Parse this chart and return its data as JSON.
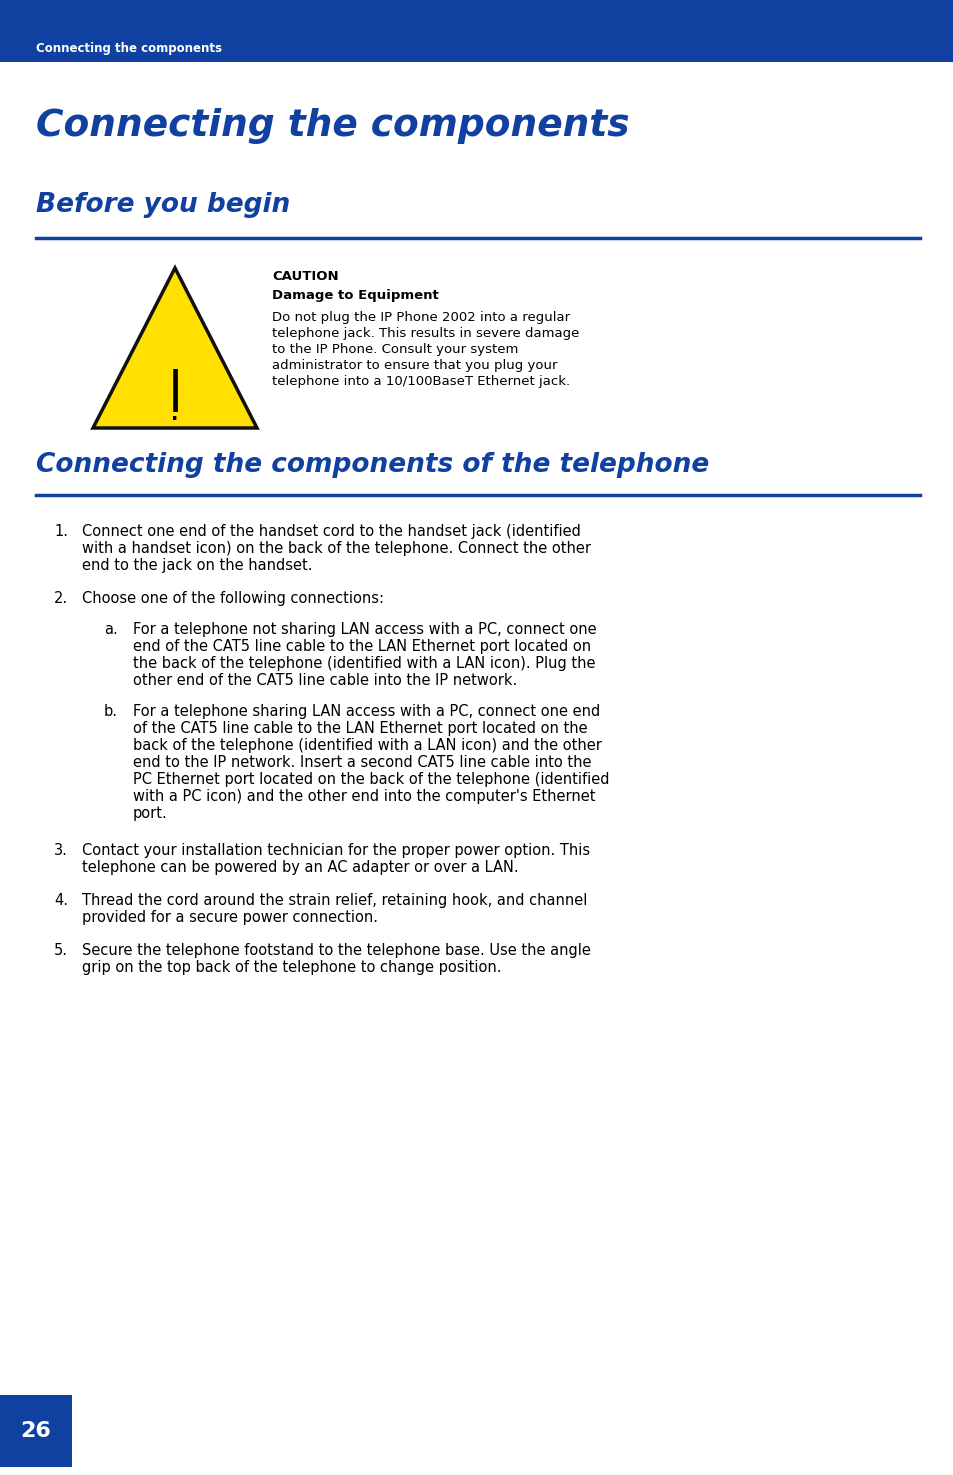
{
  "bg_color": "#ffffff",
  "header_bg": "#1040a0",
  "header_text": "Connecting the components",
  "header_text_color": "#ffffff",
  "page_title": "Connecting the components",
  "page_title_color": "#1040a0",
  "section1_title": "Before you begin",
  "section1_title_color": "#1040a0",
  "section2_title": "Connecting the components of the telephone",
  "section2_title_color": "#1040a0",
  "caution_label": "CAUTION",
  "caution_bold": "Damage to Equipment",
  "caution_line1": "Do not plug the IP Phone 2002 into a regular",
  "caution_line2": "telephone jack. This results in severe damage",
  "caution_line3": "to the IP Phone. Consult your system",
  "caution_line4": "administrator to ensure that you plug your",
  "caution_line5": "telephone into a 10/100BaseT Ethernet jack.",
  "line_color": "#1040a0",
  "page_number": "26",
  "page_num_bg": "#1040a0",
  "page_num_color": "#ffffff",
  "item1_num": "1.",
  "item1_line1": "Connect one end of the handset cord to the handset jack (identified",
  "item1_line2": "with a handset icon) on the back of the telephone. Connect the other",
  "item1_line3": "end to the jack on the handset.",
  "item2_num": "2.",
  "item2_line1": "Choose one of the following connections:",
  "suba_letter": "a.",
  "suba_line1": "For a telephone not sharing LAN access with a PC, connect one",
  "suba_line2": "end of the CAT5 line cable to the LAN Ethernet port located on",
  "suba_line3": "the back of the telephone (identified with a LAN icon). Plug the",
  "suba_line4": "other end of the CAT5 line cable into the IP network.",
  "subb_letter": "b.",
  "subb_line1": "For a telephone sharing LAN access with a PC, connect one end",
  "subb_line2": "of the CAT5 line cable to the LAN Ethernet port located on the",
  "subb_line3": "back of the telephone (identified with a LAN icon) and the other",
  "subb_line4": "end to the IP network. Insert a second CAT5 line cable into the",
  "subb_line5": "PC Ethernet port located on the back of the telephone (identified",
  "subb_line6": "with a PC icon) and the other end into the computer's Ethernet",
  "subb_line7": "port.",
  "item3_num": "3.",
  "item3_line1": "Contact your installation technician for the proper power option. This",
  "item3_line2": "telephone can be powered by an AC adapter or over a LAN.",
  "item4_num": "4.",
  "item4_line1": "Thread the cord around the strain relief, retaining hook, and channel",
  "item4_line2": "provided for a secure power connection.",
  "item5_num": "5.",
  "item5_line1": "Secure the telephone footstand to the telephone base. Use the angle",
  "item5_line2": "grip on the top back of the telephone to change position."
}
